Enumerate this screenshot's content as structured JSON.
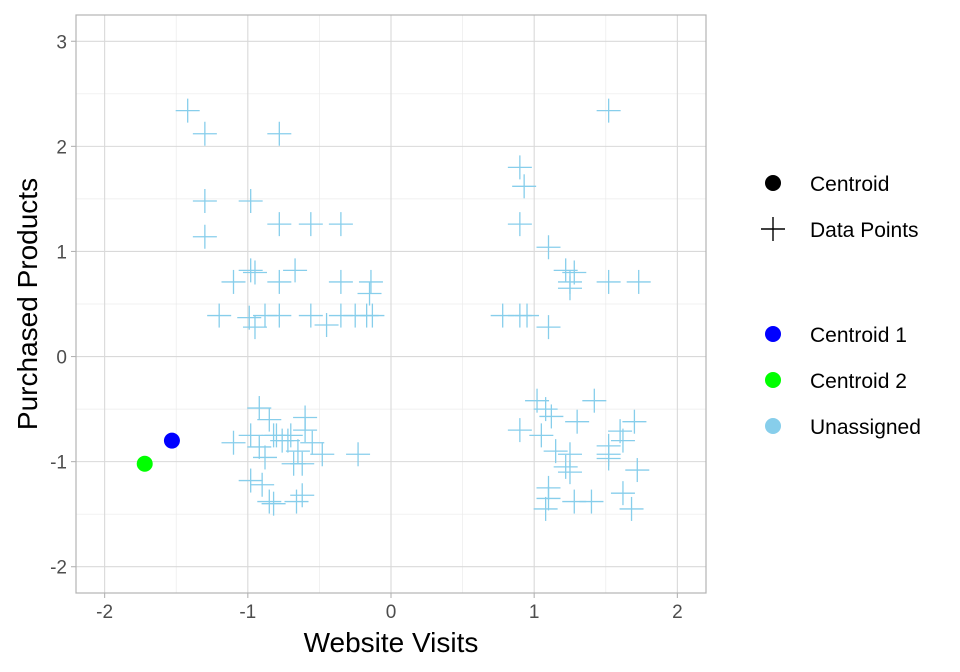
{
  "chart_data": {
    "type": "scatter",
    "title": "",
    "xlabel": "Website Visits",
    "ylabel": "Purchased Products",
    "xlim": [
      -2.2,
      2.2
    ],
    "ylim": [
      -2.25,
      3.25
    ],
    "x_ticks": [
      -2,
      -1,
      0,
      1,
      2
    ],
    "y_ticks": [
      -2,
      -1,
      0,
      1,
      2,
      3
    ],
    "x_tick_labels": [
      "-2",
      "-1",
      "0",
      "1",
      "2"
    ],
    "y_tick_labels": [
      "-2",
      "-1",
      "0",
      "1",
      "2",
      "3"
    ],
    "grid": true,
    "legend_position": "right",
    "legend_shape": [
      {
        "label": "Centroid",
        "marker": "circle"
      },
      {
        "label": "Data Points",
        "marker": "cross"
      }
    ],
    "legend_color": [
      {
        "label": "Centroid 1",
        "color": "#0000ff"
      },
      {
        "label": "Centroid 2",
        "color": "#00ff00"
      },
      {
        "label": "Unassigned",
        "color": "#87ceeb"
      }
    ],
    "series": [
      {
        "name": "Unassigned",
        "marker": "cross",
        "color": "#87ceeb",
        "points": [
          [
            -1.42,
            2.34
          ],
          [
            -1.3,
            2.12
          ],
          [
            -0.78,
            2.12
          ],
          [
            -1.3,
            1.48
          ],
          [
            -0.98,
            1.48
          ],
          [
            -1.3,
            1.14
          ],
          [
            -0.78,
            1.26
          ],
          [
            -0.56,
            1.26
          ],
          [
            -0.35,
            1.26
          ],
          [
            -1.1,
            0.71
          ],
          [
            -0.98,
            0.82
          ],
          [
            -0.95,
            0.8
          ],
          [
            -0.78,
            0.71
          ],
          [
            -0.67,
            0.82
          ],
          [
            -0.35,
            0.71
          ],
          [
            -0.14,
            0.71
          ],
          [
            -0.15,
            0.6
          ],
          [
            -1.2,
            0.39
          ],
          [
            -0.99,
            0.37
          ],
          [
            -0.95,
            0.28
          ],
          [
            -0.88,
            0.39
          ],
          [
            -0.78,
            0.39
          ],
          [
            -0.56,
            0.39
          ],
          [
            -0.45,
            0.3
          ],
          [
            -0.35,
            0.39
          ],
          [
            -0.25,
            0.39
          ],
          [
            -0.17,
            0.39
          ],
          [
            -0.13,
            0.39
          ],
          [
            -0.92,
            -0.49
          ],
          [
            -0.98,
            -0.75
          ],
          [
            -0.85,
            -0.6
          ],
          [
            -0.8,
            -0.75
          ],
          [
            -0.7,
            -0.75
          ],
          [
            -0.6,
            -0.58
          ],
          [
            -0.6,
            -0.7
          ],
          [
            -1.1,
            -0.82
          ],
          [
            -0.92,
            -0.86
          ],
          [
            -0.88,
            -0.96
          ],
          [
            -0.82,
            -0.75
          ],
          [
            -0.76,
            -0.8
          ],
          [
            -0.72,
            -0.8
          ],
          [
            -0.55,
            -0.82
          ],
          [
            -0.48,
            -0.93
          ],
          [
            -0.23,
            -0.93
          ],
          [
            -0.65,
            -0.9
          ],
          [
            -0.98,
            -1.18
          ],
          [
            -0.9,
            -1.22
          ],
          [
            -0.68,
            -1.02
          ],
          [
            -0.62,
            -1.02
          ],
          [
            -0.85,
            -1.38
          ],
          [
            -0.82,
            -1.4
          ],
          [
            -0.66,
            -1.38
          ],
          [
            -0.62,
            -1.32
          ],
          [
            1.52,
            2.34
          ],
          [
            0.9,
            1.8
          ],
          [
            0.93,
            1.62
          ],
          [
            0.9,
            1.26
          ],
          [
            1.1,
            1.04
          ],
          [
            1.22,
            0.82
          ],
          [
            1.25,
            0.71
          ],
          [
            1.28,
            0.8
          ],
          [
            1.25,
            0.65
          ],
          [
            1.52,
            0.71
          ],
          [
            1.73,
            0.71
          ],
          [
            0.78,
            0.39
          ],
          [
            0.9,
            0.39
          ],
          [
            0.95,
            0.39
          ],
          [
            1.1,
            0.28
          ],
          [
            1.02,
            -0.42
          ],
          [
            1.08,
            -0.5
          ],
          [
            1.12,
            -0.57
          ],
          [
            1.42,
            -0.42
          ],
          [
            1.3,
            -0.62
          ],
          [
            0.9,
            -0.7
          ],
          [
            1.05,
            -0.75
          ],
          [
            1.15,
            -0.9
          ],
          [
            1.25,
            -0.93
          ],
          [
            1.22,
            -1.05
          ],
          [
            1.25,
            -1.1
          ],
          [
            1.52,
            -0.85
          ],
          [
            1.52,
            -0.93
          ],
          [
            1.52,
            -0.97
          ],
          [
            1.6,
            -0.71
          ],
          [
            1.62,
            -0.8
          ],
          [
            1.7,
            -0.62
          ],
          [
            1.72,
            -1.08
          ],
          [
            1.1,
            -1.25
          ],
          [
            1.1,
            -1.35
          ],
          [
            1.08,
            -1.45
          ],
          [
            1.28,
            -1.38
          ],
          [
            1.4,
            -1.38
          ],
          [
            1.62,
            -1.3
          ],
          [
            1.68,
            -1.45
          ]
        ]
      },
      {
        "name": "Centroid 1",
        "marker": "circle",
        "color": "#0000ff",
        "points": [
          [
            -1.53,
            -0.8
          ]
        ]
      },
      {
        "name": "Centroid 2",
        "marker": "circle",
        "color": "#00ff00",
        "points": [
          [
            -1.72,
            -1.02
          ]
        ]
      }
    ]
  }
}
